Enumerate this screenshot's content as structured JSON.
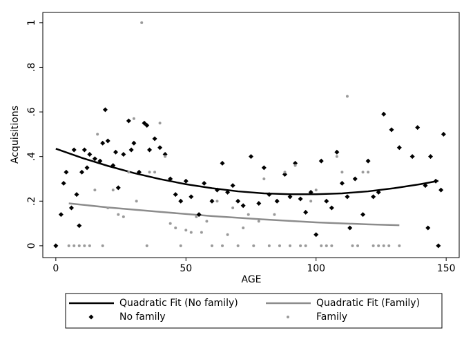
{
  "chart_data": {
    "type": "scatter",
    "x_label": "AGE",
    "y_label": "Acquisitions",
    "xlim": [
      -5,
      155
    ],
    "ylim": [
      -0.053,
      1.046
    ],
    "xticks": [
      0,
      50,
      100,
      150
    ],
    "yticks": [
      0,
      {
        "value": 0.2,
        "label": ".2"
      },
      {
        "value": 0.4,
        "label": ".4"
      },
      {
        "value": 0.6,
        "label": ".6"
      },
      {
        "value": 0.8,
        "label": ".8"
      },
      1
    ],
    "grid": false,
    "series": [
      {
        "name": "Quadratic Fit (No family)",
        "style": "line",
        "color": "#000000",
        "x": [
          0,
          10,
          20,
          30,
          40,
          50,
          60,
          70,
          80,
          90,
          100,
          110,
          120,
          130,
          140,
          147
        ],
        "values": [
          0.435,
          0.394,
          0.358,
          0.326,
          0.299,
          0.276,
          0.258,
          0.244,
          0.235,
          0.231,
          0.231,
          0.235,
          0.244,
          0.258,
          0.276,
          0.291
        ]
      },
      {
        "name": "Quadratic Fit (Family)",
        "style": "line",
        "color": "#8c8c8c",
        "x": [
          5,
          20,
          40,
          60,
          80,
          100,
          120,
          132
        ],
        "values": [
          0.19,
          0.172,
          0.152,
          0.133,
          0.118,
          0.105,
          0.096,
          0.092
        ]
      },
      {
        "name": "No family",
        "style": "diamond",
        "color": "#000000",
        "x": [
          0,
          2,
          3,
          4,
          6,
          7,
          8,
          9,
          10,
          11,
          12,
          13,
          15,
          17,
          18,
          19,
          20,
          22,
          23,
          24,
          26,
          28,
          29,
          30,
          32,
          34,
          35,
          36,
          38,
          40,
          42,
          44,
          46,
          48,
          50,
          52,
          55,
          57,
          60,
          62,
          64,
          66,
          68,
          70,
          72,
          75,
          78,
          80,
          82,
          85,
          88,
          90,
          92,
          94,
          96,
          98,
          100,
          102,
          104,
          106,
          108,
          110,
          112,
          113,
          115,
          118,
          120,
          122,
          124,
          126,
          129,
          132,
          137,
          139,
          142,
          143,
          144,
          146,
          147,
          148,
          149
        ],
        "values": [
          0,
          0.14,
          0.28,
          0.33,
          0.17,
          0.43,
          0.23,
          0.09,
          0.33,
          0.43,
          0.35,
          0.41,
          0.39,
          0.38,
          0.46,
          0.61,
          0.47,
          0.36,
          0.42,
          0.26,
          0.41,
          0.56,
          0.43,
          0.46,
          0.33,
          0.55,
          0.54,
          0.43,
          0.48,
          0.44,
          0.41,
          0.3,
          0.23,
          0.2,
          0.29,
          0.22,
          0.14,
          0.28,
          0.2,
          0.25,
          0.37,
          0.24,
          0.27,
          0.2,
          0.18,
          0.4,
          0.19,
          0.35,
          0.23,
          0.2,
          0.32,
          0.22,
          0.37,
          0.21,
          0.15,
          0.24,
          0.05,
          0.38,
          0.2,
          0.17,
          0.42,
          0.28,
          0.22,
          0.08,
          0.3,
          0.14,
          0.38,
          0.22,
          0.24,
          0.59,
          0.52,
          0.44,
          0.4,
          0.53,
          0.27,
          0.08,
          0.4,
          0.29,
          0,
          0.25,
          0.5
        ]
      },
      {
        "name": "Family",
        "style": "dot",
        "color": "#9a9a9a",
        "x": [
          5,
          7,
          9,
          11,
          13,
          15,
          16,
          18,
          20,
          22,
          24,
          26,
          28,
          30,
          31,
          33,
          35,
          36,
          38,
          40,
          42,
          44,
          46,
          48,
          50,
          52,
          54,
          56,
          58,
          60,
          62,
          64,
          66,
          68,
          70,
          72,
          74,
          76,
          78,
          80,
          82,
          84,
          86,
          88,
          90,
          92,
          94,
          96,
          98,
          100,
          102,
          104,
          106,
          108,
          110,
          112,
          114,
          116,
          118,
          120,
          122,
          124,
          126,
          128,
          132
        ],
        "values": [
          0,
          0,
          0,
          0,
          0,
          0.25,
          0.5,
          0,
          0.17,
          0.25,
          0.14,
          0.13,
          0.33,
          0.57,
          0.2,
          1,
          0,
          0.33,
          0.33,
          0.55,
          0.4,
          0.1,
          0.08,
          0,
          0.07,
          0.06,
          0.13,
          0.06,
          0.11,
          0,
          0.2,
          0,
          0.05,
          0.17,
          0,
          0.08,
          0.14,
          0,
          0.11,
          0.3,
          0,
          0.14,
          0,
          0.33,
          0,
          0.36,
          0,
          0,
          0.2,
          0.25,
          0,
          0,
          0,
          0.4,
          0.33,
          0.67,
          0,
          0,
          0.33,
          0.33,
          0,
          0,
          0,
          0,
          0
        ]
      }
    ]
  }
}
